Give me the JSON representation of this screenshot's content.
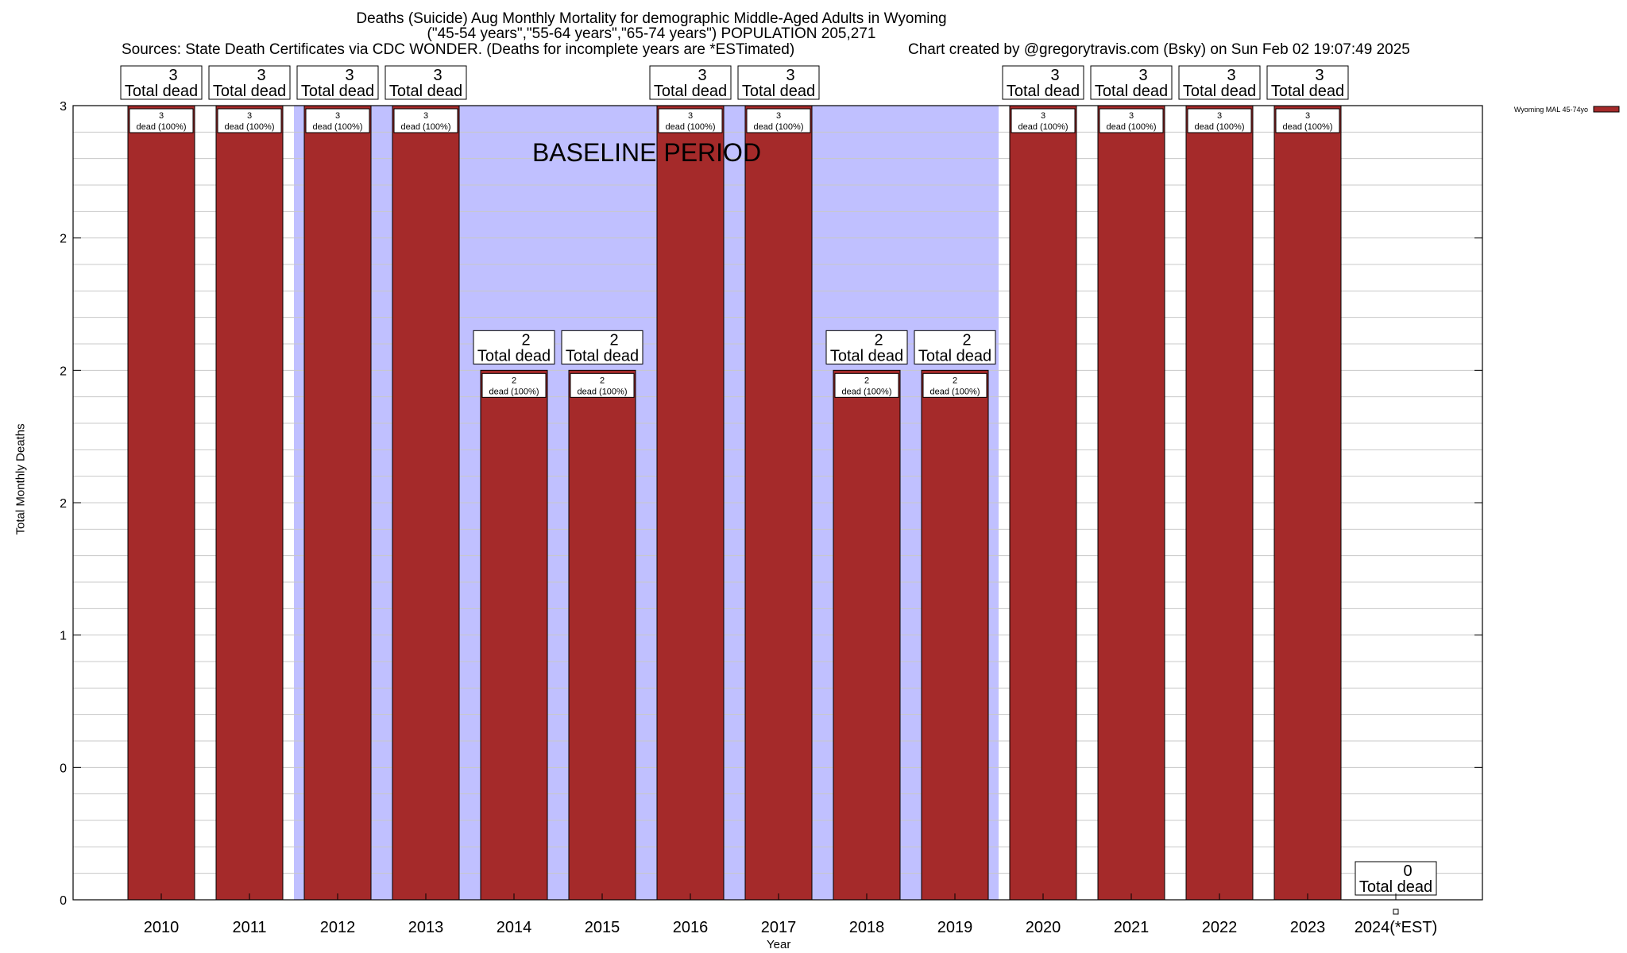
{
  "title": "Deaths (Suicide) Aug Monthly Mortality for demographic Middle-Aged Adults in Wyoming",
  "subtitle": "(\"45-54 years\",\"55-64 years\",\"65-74 years\") POPULATION 205,271",
  "sources": "Sources: State Death Certificates via CDC WONDER. (Deaths for incomplete years are *ESTimated)",
  "credit": "Chart created by @gregorytravis.com (Bsky) on Sun Feb 02 19:07:49 2025",
  "annotation": "BASELINE PERIOD",
  "colors": {
    "bar": "#a52a2a",
    "baseline": "#c0c0ff",
    "grid": "#c8c8c8"
  },
  "chart_data": {
    "type": "bar",
    "xlabel": "Year",
    "ylabel": "Total Monthly Deaths",
    "ylim": [
      0,
      3
    ],
    "y_tick_labels": [
      "0",
      "0",
      "1",
      "2",
      "2",
      "2",
      "3"
    ],
    "categories": [
      "2010",
      "2011",
      "2012",
      "2013",
      "2014",
      "2015",
      "2016",
      "2017",
      "2018",
      "2019",
      "2020",
      "2021",
      "2022",
      "2023",
      "2024(*EST)"
    ],
    "series": [
      {
        "name": "Wyoming MAL 45-74yo",
        "values": [
          3,
          3,
          3,
          3,
          2,
          2,
          3,
          3,
          2,
          2,
          3,
          3,
          3,
          3,
          0
        ]
      }
    ],
    "top_labels": [
      "3",
      "3",
      "3",
      "3",
      "2",
      "2",
      "3",
      "3",
      "2",
      "2",
      "3",
      "3",
      "3",
      "3",
      "0"
    ],
    "top_label_suffix": "Total dead",
    "inner_labels": [
      "3",
      "3",
      "3",
      "3",
      "2",
      "2",
      "3",
      "3",
      "2",
      "2",
      "3",
      "3",
      "3",
      "3",
      ""
    ],
    "inner_label_suffix": "dead (100%)",
    "baseline_shading": [
      {
        "from": "2012",
        "to": "2013"
      },
      {
        "from": "2013",
        "to": "2019"
      }
    ],
    "legend_placement": "top-right",
    "grid": true
  }
}
